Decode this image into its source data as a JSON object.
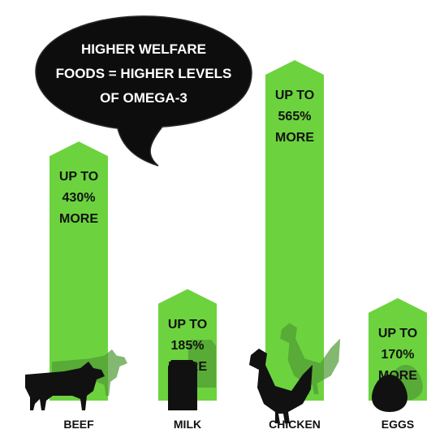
{
  "chart_data": {
    "type": "bar",
    "title": "HIGHER WELFARE FOODS = HIGHER LEVELS OF OMEGA-3",
    "title_lines": [
      "HIGHER WELFARE",
      "FOODS = HIGHER LEVELS",
      "OF OMEGA-3"
    ],
    "categories": [
      "BEEF",
      "MILK",
      "CHICKEN",
      "EGGS"
    ],
    "values": [
      430,
      185,
      565,
      170
    ],
    "unit": "%",
    "label_prefix": "UP TO",
    "label_suffix": "MORE",
    "data_labels": [
      [
        "UP TO",
        "430%",
        "MORE"
      ],
      [
        "UP TO",
        "185%",
        "MORE"
      ],
      [
        "UP TO",
        "565%",
        "MORE"
      ],
      [
        "UP TO",
        "170%",
        "MORE"
      ]
    ],
    "icons": [
      "cow-icon",
      "milk-carton-icon",
      "chicken-icon",
      "egg-icon"
    ],
    "bar_color": "#6cd33f",
    "icon_color": "#111111",
    "shadow_color": "#4f9a33",
    "bubble_color": "#0d0d0d",
    "legend": "none",
    "grid": false
  }
}
